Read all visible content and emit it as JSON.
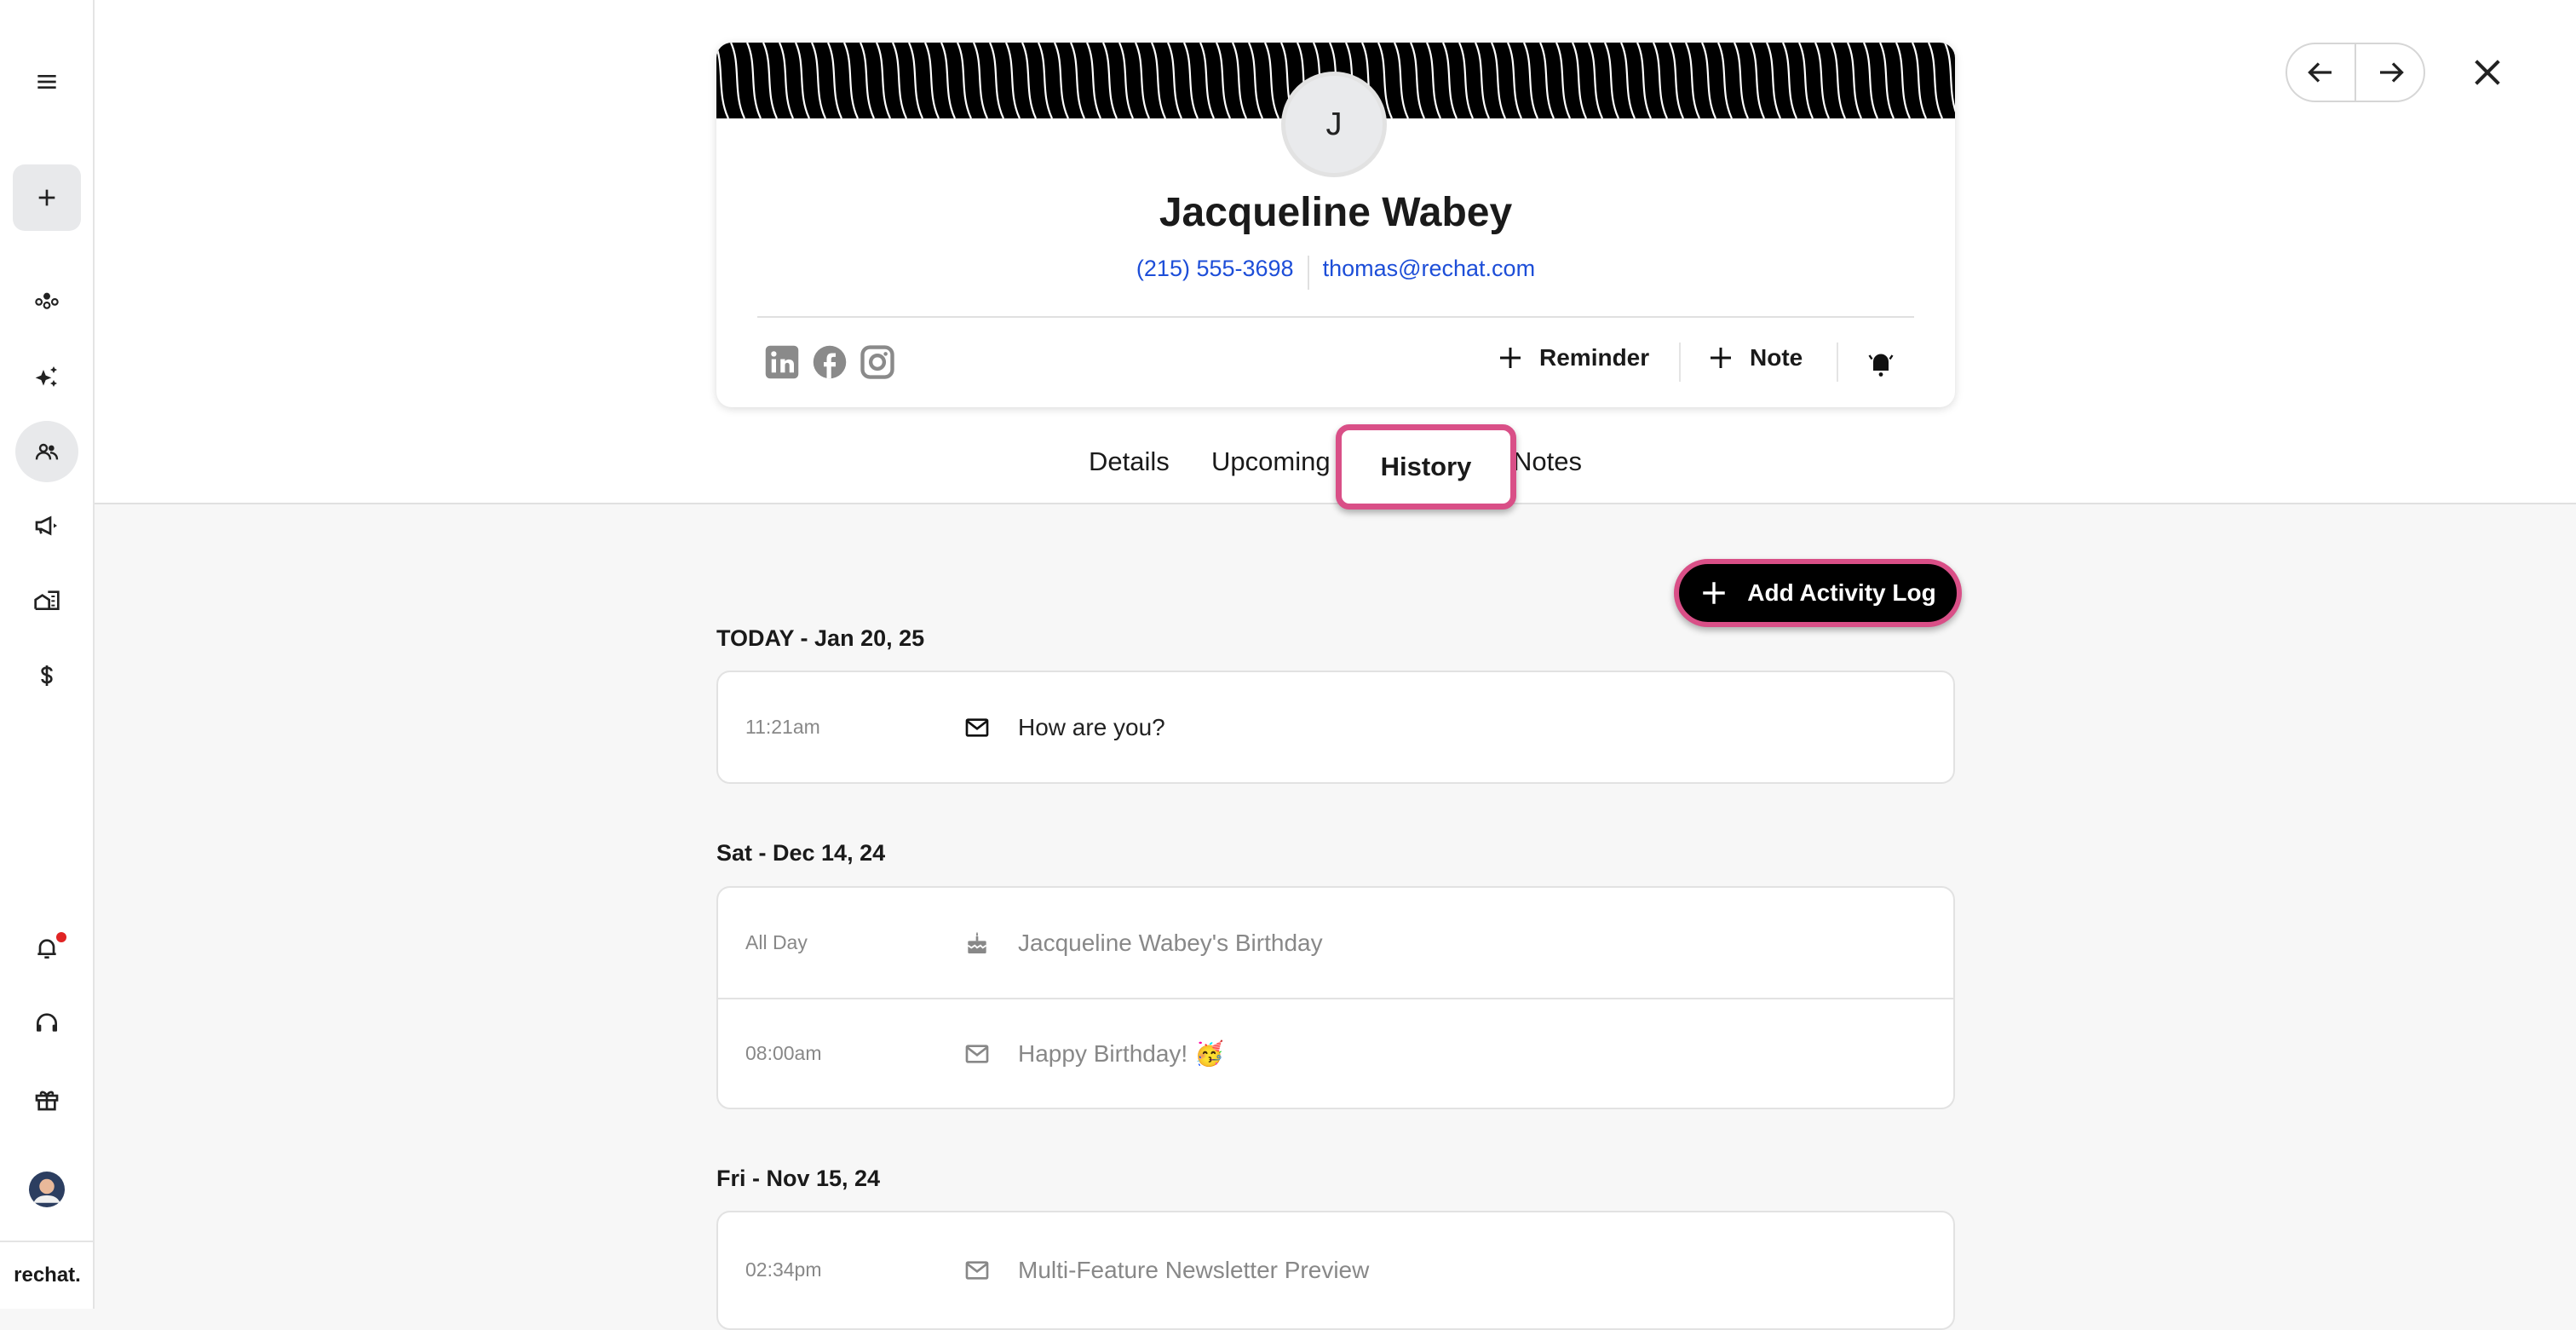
{
  "brand": {
    "logo_text": "rechat."
  },
  "sidebar": {
    "items": [
      {
        "icon": "menu-icon"
      },
      {
        "icon": "plus-icon"
      },
      {
        "icon": "dashboard-icon"
      },
      {
        "icon": "sparkle-icon"
      },
      {
        "icon": "people-icon",
        "active": true
      },
      {
        "icon": "megaphone-icon"
      },
      {
        "icon": "buildings-icon"
      },
      {
        "icon": "dollar-icon"
      },
      {
        "icon": "bell-icon",
        "badge": true
      },
      {
        "icon": "headset-icon"
      },
      {
        "icon": "gift-icon"
      },
      {
        "icon": "user-avatar"
      }
    ],
    "badge_color": "#e02424"
  },
  "contact": {
    "initial": "J",
    "name": "Jacqueline Wabey",
    "phone": "(215) 555-3698",
    "email": "thomas@rechat.com",
    "socials": [
      "linkedin-icon",
      "facebook-icon",
      "instagram-icon"
    ],
    "actions": {
      "reminder": "Reminder",
      "note": "Note"
    }
  },
  "tabs": [
    {
      "label": "Details"
    },
    {
      "label": "Upcoming"
    },
    {
      "label": "History",
      "active": true
    },
    {
      "label": "Notes"
    }
  ],
  "toolbar": {
    "add_activity_label": "Add Activity Log"
  },
  "history": [
    {
      "date": "TODAY - Jan 20, 25",
      "items": [
        {
          "time": "11:21am",
          "icon": "mail-icon",
          "text": "How are you?"
        }
      ]
    },
    {
      "date": "Sat - Dec 14, 24",
      "items": [
        {
          "time": "All Day",
          "icon": "cake-icon",
          "text": "Jacqueline Wabey's Birthday"
        },
        {
          "time": "08:00am",
          "icon": "mail-icon",
          "text": "Happy Birthday! 🥳"
        }
      ]
    },
    {
      "date": "Fri - Nov 15, 24",
      "items": [
        {
          "time": "02:34pm",
          "icon": "mail-icon",
          "text": "Multi-Feature Newsletter Preview"
        }
      ]
    }
  ],
  "colors": {
    "highlight": "#d94f87",
    "link": "#1d4ed8"
  }
}
